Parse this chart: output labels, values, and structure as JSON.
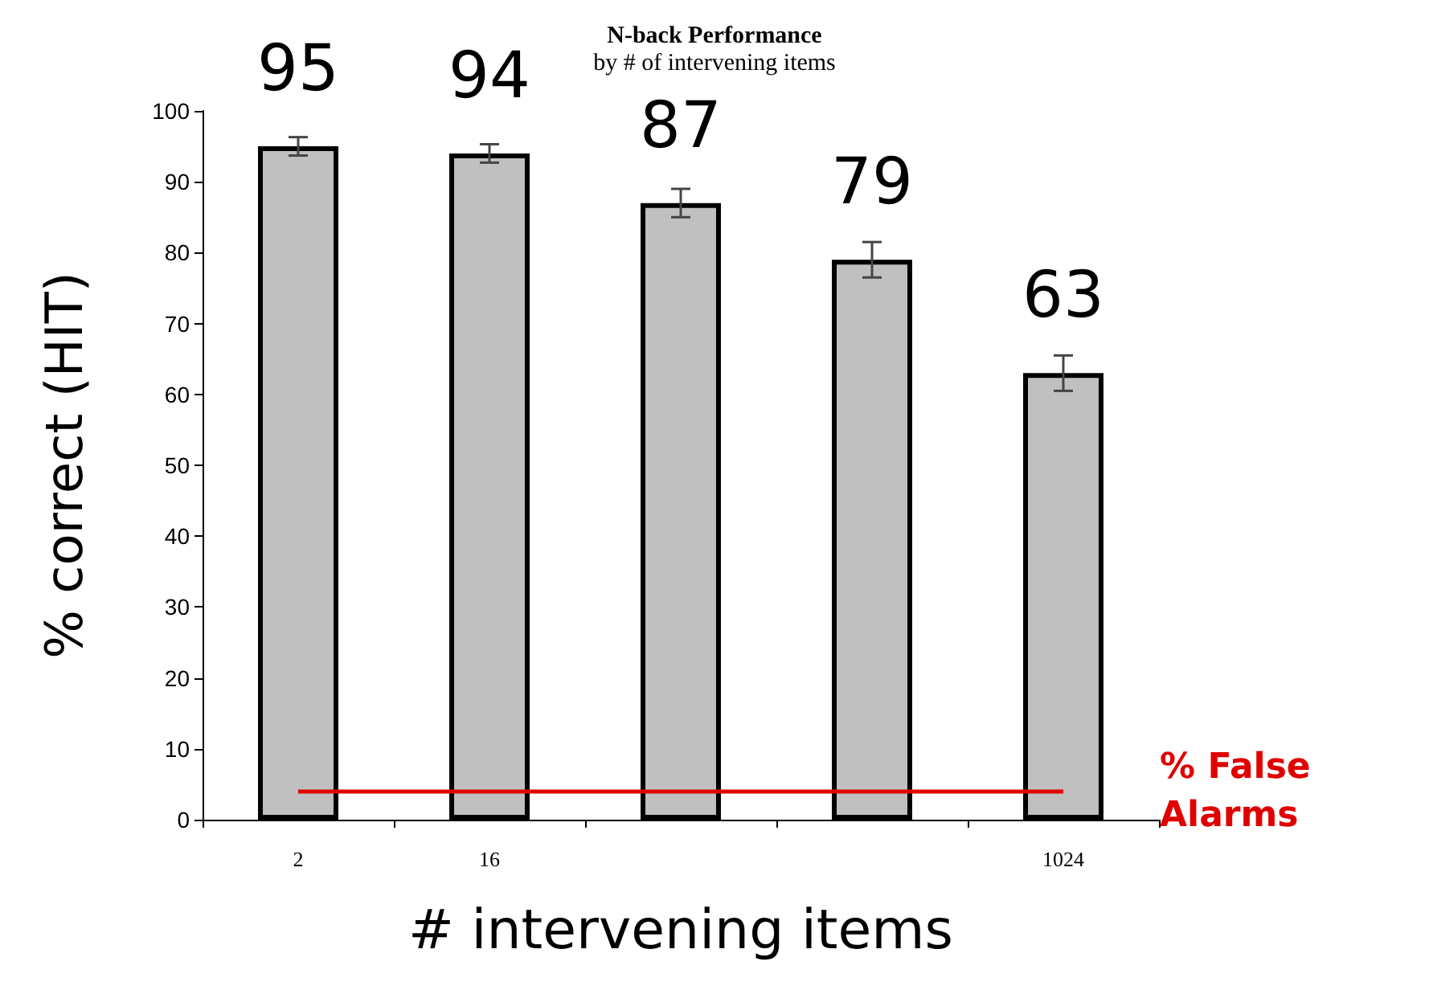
{
  "chart_data": {
    "type": "bar",
    "title": "N-back Performance",
    "subtitle": "by # of intervening items",
    "xlabel": "# intervening items",
    "ylabel": "% correct (HIT)",
    "categories": [
      "2",
      "16",
      null,
      null,
      "1024"
    ],
    "values": [
      95,
      94,
      87,
      79,
      63
    ],
    "errors": [
      1.3,
      1.3,
      2,
      2.5,
      2.5
    ],
    "color": "#c0c0c0",
    "data_labels": true,
    "ylim": [
      0,
      100
    ],
    "yticks": [
      0,
      10,
      20,
      30,
      40,
      50,
      60,
      70,
      80,
      90,
      100
    ],
    "grid": false,
    "ref_lines": [
      {
        "axis": "y",
        "value": 4,
        "label": "% False Alarms",
        "color": "#e00000"
      }
    ]
  }
}
